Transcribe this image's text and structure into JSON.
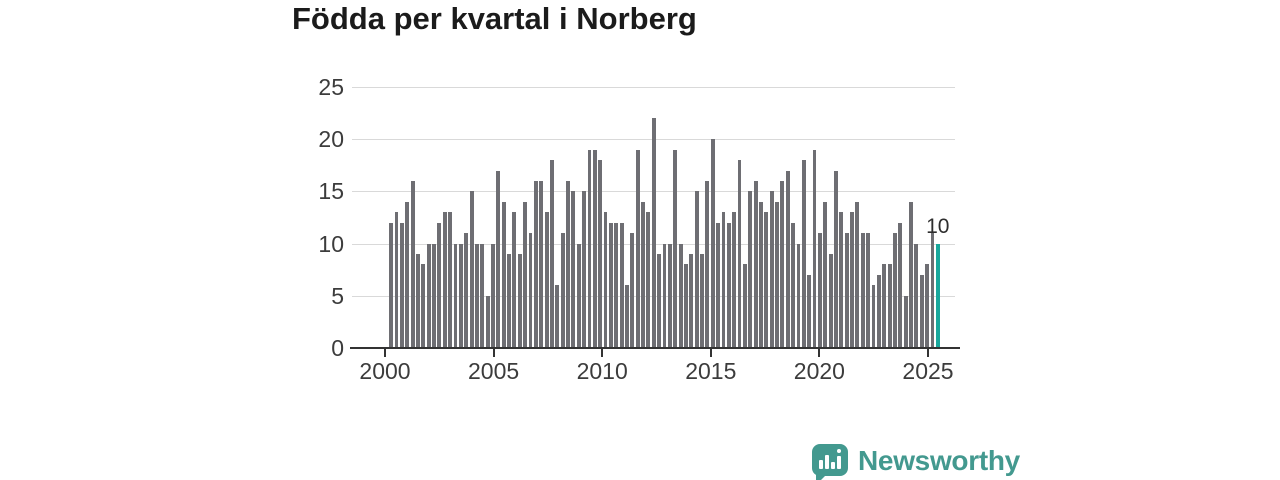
{
  "header": {
    "title": "Födda per kvartal i Norberg"
  },
  "colors": {
    "bar": "#6e6e73",
    "highlight": "#18a79c",
    "axis": "#333333",
    "gridline": "#d9d9d9",
    "title_text": "#1b1b1b",
    "brand": "#43998f",
    "background": "#ffffff"
  },
  "chart_data": {
    "type": "bar",
    "title": "Födda per kvartal i Norberg",
    "xlabel": "",
    "ylabel": "",
    "x_start": "2000-Q1",
    "x_end": "2025-Q3",
    "frequency": "quarterly",
    "x_tick_labels": [
      "2000",
      "2005",
      "2010",
      "2015",
      "2020",
      "2025"
    ],
    "y_tick_labels": [
      "0",
      "5",
      "10",
      "15",
      "20",
      "25"
    ],
    "ylim": [
      0,
      25
    ],
    "y_step": 5,
    "grid": "horizontal",
    "legend": "none",
    "values": [
      12,
      13,
      12,
      14,
      16,
      9,
      8,
      10,
      10,
      12,
      13,
      13,
      10,
      10,
      11,
      15,
      10,
      10,
      5,
      10,
      17,
      14,
      9,
      13,
      9,
      14,
      11,
      16,
      16,
      13,
      18,
      6,
      11,
      16,
      15,
      10,
      15,
      19,
      19,
      18,
      13,
      12,
      12,
      12,
      6,
      11,
      19,
      14,
      13,
      22,
      9,
      10,
      10,
      19,
      10,
      8,
      9,
      15,
      9,
      16,
      20,
      12,
      13,
      12,
      13,
      18,
      8,
      15,
      16,
      14,
      13,
      15,
      14,
      16,
      17,
      12,
      10,
      18,
      7,
      19,
      11,
      14,
      9,
      17,
      13,
      11,
      13,
      14,
      11,
      11,
      6,
      7,
      8,
      8,
      11,
      12,
      5,
      14,
      10,
      7,
      8,
      11,
      10
    ],
    "highlight_last_bar": true,
    "last_value_label": "10",
    "last_quarter": "2025-Q3"
  },
  "footer": {
    "brand": "Newsworthy",
    "logo_icon": "speech-bubble-bar-chart-icon"
  }
}
